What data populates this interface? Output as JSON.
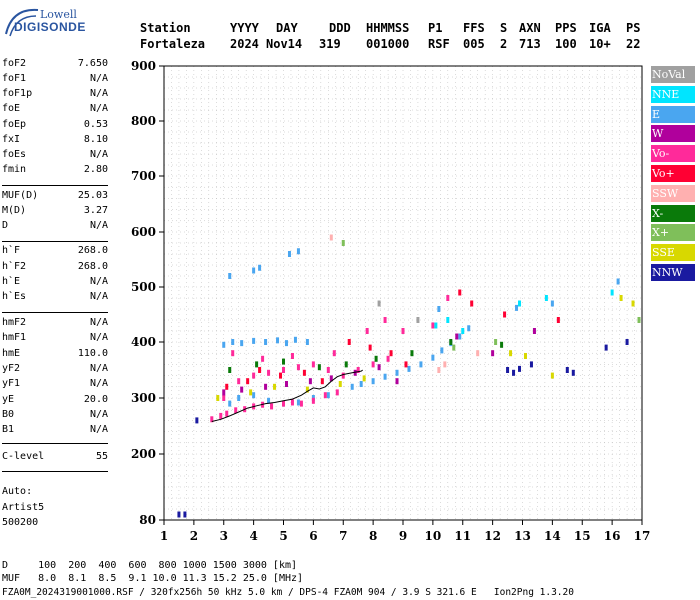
{
  "logo": {
    "top": "Lowell",
    "bottom": "DIGISONDE"
  },
  "header": {
    "line1": [
      "Station",
      "YYYY",
      "DAY",
      "DDD",
      "HHMMSS",
      "P1",
      "FFS",
      "S",
      "AXN",
      "PPS",
      "IGA",
      "PS"
    ],
    "line2": [
      "Fortaleza",
      "2024",
      "Nov14",
      "319",
      "001000",
      "RSF",
      "005",
      "2",
      "713",
      "100",
      "10+",
      "22"
    ]
  },
  "params": [
    {
      "k": "foF2",
      "v": "7.650"
    },
    {
      "k": "foF1",
      "v": "N/A"
    },
    {
      "k": "foF1p",
      "v": "N/A"
    },
    {
      "k": "foE",
      "v": "N/A"
    },
    {
      "k": "foEp",
      "v": "0.53"
    },
    {
      "k": "fxI",
      "v": "8.10"
    },
    {
      "k": "foEs",
      "v": "N/A"
    },
    {
      "k": "fmin",
      "v": "2.80"
    },
    {
      "k": "MUF(D)",
      "v": "25.03"
    },
    {
      "k": "M(D)",
      "v": "3.27"
    },
    {
      "k": "D",
      "v": "N/A"
    },
    {
      "k": "h`F",
      "v": "268.0"
    },
    {
      "k": "h`F2",
      "v": "268.0"
    },
    {
      "k": "h`E",
      "v": "N/A"
    },
    {
      "k": "h`Es",
      "v": "N/A"
    },
    {
      "k": "hmF2",
      "v": "N/A"
    },
    {
      "k": "hmF1",
      "v": "N/A"
    },
    {
      "k": "hmE",
      "v": "110.0"
    },
    {
      "k": "yF2",
      "v": "N/A"
    },
    {
      "k": "yF1",
      "v": "N/A"
    },
    {
      "k": "yE",
      "v": "20.0"
    },
    {
      "k": "B0",
      "v": "N/A"
    },
    {
      "k": "B1",
      "v": "N/A"
    },
    {
      "k": "C-level",
      "v": "55"
    }
  ],
  "auto": {
    "line1": "Auto:",
    "line2": "Artist5",
    "line3": "500200"
  },
  "legend": [
    {
      "label": "NoVal",
      "color": "#a0a0a0"
    },
    {
      "label": "NNE",
      "color": "#00e5ff"
    },
    {
      "label": "E",
      "color": "#4aa6f0"
    },
    {
      "label": "W",
      "color": "#b0009c"
    },
    {
      "label": "Vo-",
      "color": "#ff2a9a"
    },
    {
      "label": "Vo+",
      "color": "#ff0033"
    },
    {
      "label": "SSW",
      "color": "#ffb0b0"
    },
    {
      "label": "X-",
      "color": "#0a7a0a"
    },
    {
      "label": "X+",
      "color": "#7fbf5a"
    },
    {
      "label": "SSE",
      "color": "#d8d800"
    },
    {
      "label": "NNW",
      "color": "#1a1aa0"
    }
  ],
  "footer": {
    "line1": "D     100  200  400  600  800 1000 1500 3000 [km]",
    "line2": "MUF   8.0  8.1  8.5  9.1 10.0 11.3 15.2 25.0 [MHz]",
    "line3": "FZA0M_2024319001000.RSF / 320fx256h 50 kHz 5.0 km / DPS-4 FZA0M 904 / 3.9 S 321.6 E   Ion2Png 1.3.20"
  },
  "chart_data": {
    "type": "scatter",
    "xlim": [
      1,
      17
    ],
    "ylim": [
      80,
      900
    ],
    "xticks": [
      "1",
      "2",
      "3",
      "4",
      "5",
      "6",
      "7",
      "8",
      "9",
      "10",
      "11",
      "12",
      "13",
      "14",
      "15",
      "16",
      "17"
    ],
    "yticks": [
      "80",
      "200",
      "300",
      "400",
      "500",
      "600",
      "700",
      "800",
      "900"
    ],
    "grid": true,
    "series": [
      {
        "name": "E",
        "color": "#4aa6f0",
        "points": [
          [
            3.0,
            395
          ],
          [
            3.3,
            400
          ],
          [
            3.6,
            398
          ],
          [
            4.0,
            402
          ],
          [
            4.4,
            400
          ],
          [
            4.8,
            403
          ],
          [
            5.1,
            398
          ],
          [
            5.4,
            404
          ],
          [
            5.8,
            400
          ],
          [
            7.3,
            320
          ],
          [
            7.6,
            325
          ],
          [
            8.0,
            330
          ],
          [
            8.4,
            338
          ],
          [
            8.8,
            345
          ],
          [
            9.2,
            352
          ],
          [
            9.6,
            360
          ],
          [
            10.0,
            372
          ],
          [
            10.3,
            385
          ],
          [
            10.6,
            398
          ],
          [
            10.9,
            410
          ],
          [
            11.2,
            425
          ],
          [
            3.2,
            290
          ],
          [
            3.5,
            300
          ],
          [
            4.0,
            305
          ],
          [
            4.5,
            295
          ],
          [
            5.0,
            290
          ],
          [
            5.5,
            292
          ],
          [
            6.0,
            300
          ],
          [
            6.5,
            305
          ],
          [
            3.2,
            520
          ],
          [
            4.0,
            530
          ],
          [
            4.2,
            535
          ],
          [
            5.2,
            560
          ],
          [
            5.5,
            565
          ],
          [
            10.2,
            460
          ],
          [
            12.8,
            462
          ],
          [
            14.0,
            470
          ],
          [
            16.2,
            510
          ]
        ]
      },
      {
        "name": "Vo-",
        "color": "#ff2a9a",
        "points": [
          [
            2.6,
            262
          ],
          [
            2.9,
            268
          ],
          [
            3.1,
            272
          ],
          [
            3.4,
            278
          ],
          [
            3.7,
            280
          ],
          [
            4.0,
            285
          ],
          [
            4.3,
            288
          ],
          [
            4.6,
            285
          ],
          [
            5.0,
            290
          ],
          [
            5.3,
            292
          ],
          [
            5.6,
            290
          ],
          [
            6.0,
            295
          ],
          [
            6.4,
            305
          ],
          [
            6.8,
            310
          ],
          [
            3.0,
            300
          ],
          [
            3.5,
            330
          ],
          [
            4.0,
            340
          ],
          [
            4.5,
            345
          ],
          [
            5.0,
            350
          ],
          [
            5.5,
            355
          ],
          [
            6.0,
            360
          ],
          [
            6.5,
            350
          ],
          [
            7.0,
            340
          ],
          [
            7.5,
            350
          ],
          [
            8.0,
            360
          ],
          [
            8.5,
            370
          ],
          [
            3.3,
            380
          ],
          [
            4.3,
            370
          ],
          [
            5.3,
            375
          ],
          [
            6.7,
            380
          ],
          [
            7.8,
            420
          ],
          [
            8.4,
            440
          ],
          [
            9.0,
            420
          ],
          [
            10.0,
            430
          ],
          [
            10.5,
            480
          ]
        ]
      },
      {
        "name": "Vo+",
        "color": "#ff0033",
        "points": [
          [
            3.1,
            320
          ],
          [
            3.8,
            330
          ],
          [
            4.2,
            350
          ],
          [
            4.9,
            340
          ],
          [
            5.7,
            345
          ],
          [
            6.3,
            330
          ],
          [
            7.2,
            400
          ],
          [
            7.9,
            390
          ],
          [
            8.6,
            380
          ],
          [
            9.1,
            360
          ],
          [
            10.9,
            490
          ],
          [
            11.3,
            470
          ],
          [
            12.4,
            450
          ],
          [
            14.2,
            440
          ]
        ]
      },
      {
        "name": "W",
        "color": "#b0009c",
        "points": [
          [
            3.0,
            310
          ],
          [
            3.6,
            315
          ],
          [
            4.4,
            320
          ],
          [
            5.1,
            325
          ],
          [
            5.9,
            330
          ],
          [
            6.6,
            335
          ],
          [
            7.4,
            345
          ],
          [
            8.2,
            355
          ],
          [
            8.8,
            330
          ],
          [
            10.8,
            410
          ],
          [
            12.0,
            380
          ],
          [
            13.4,
            420
          ]
        ]
      },
      {
        "name": "X-",
        "color": "#0a7a0a",
        "points": [
          [
            3.2,
            350
          ],
          [
            4.1,
            360
          ],
          [
            5.0,
            365
          ],
          [
            6.2,
            355
          ],
          [
            7.1,
            360
          ],
          [
            8.1,
            370
          ],
          [
            9.3,
            380
          ],
          [
            10.6,
            400
          ],
          [
            12.3,
            395
          ]
        ]
      },
      {
        "name": "SSE",
        "color": "#d8d800",
        "points": [
          [
            2.8,
            300
          ],
          [
            3.9,
            310
          ],
          [
            4.7,
            320
          ],
          [
            5.8,
            315
          ],
          [
            6.9,
            325
          ],
          [
            7.7,
            335
          ],
          [
            12.6,
            380
          ],
          [
            13.1,
            375
          ],
          [
            14.0,
            340
          ],
          [
            16.3,
            480
          ],
          [
            16.7,
            470
          ]
        ]
      },
      {
        "name": "NNE",
        "color": "#00e5ff",
        "points": [
          [
            10.1,
            430
          ],
          [
            10.5,
            440
          ],
          [
            11.0,
            420
          ],
          [
            12.9,
            470
          ],
          [
            13.8,
            480
          ],
          [
            16.0,
            490
          ]
        ]
      },
      {
        "name": "NNW",
        "color": "#1a1aa0",
        "points": [
          [
            12.5,
            350
          ],
          [
            12.7,
            345
          ],
          [
            12.9,
            352
          ],
          [
            13.3,
            360
          ],
          [
            14.5,
            350
          ],
          [
            14.7,
            345
          ],
          [
            15.8,
            390
          ],
          [
            16.5,
            400
          ],
          [
            2.1,
            260
          ],
          [
            1.5,
            90
          ],
          [
            1.7,
            90
          ]
        ]
      },
      {
        "name": "SSW",
        "color": "#ffb0b0",
        "points": [
          [
            10.2,
            350
          ],
          [
            10.4,
            360
          ],
          [
            11.5,
            380
          ],
          [
            6.6,
            590
          ]
        ]
      },
      {
        "name": "X+",
        "color": "#7fbf5a",
        "points": [
          [
            7.0,
            580
          ],
          [
            10.7,
            390
          ],
          [
            12.1,
            400
          ],
          [
            16.9,
            440
          ]
        ]
      },
      {
        "name": "NoVal",
        "color": "#a0a0a0",
        "points": [
          [
            8.2,
            470
          ],
          [
            9.5,
            440
          ]
        ]
      }
    ],
    "trace": [
      [
        2.6,
        258
      ],
      [
        2.9,
        262
      ],
      [
        3.2,
        268
      ],
      [
        3.5,
        275
      ],
      [
        3.8,
        282
      ],
      [
        4.1,
        286
      ],
      [
        4.4,
        290
      ],
      [
        4.7,
        292
      ],
      [
        5.0,
        295
      ],
      [
        5.3,
        298
      ],
      [
        5.6,
        305
      ],
      [
        5.8,
        312
      ],
      [
        6.0,
        318
      ],
      [
        6.2,
        316
      ],
      [
        6.4,
        320
      ],
      [
        6.6,
        330
      ],
      [
        6.8,
        338
      ],
      [
        7.0,
        342
      ],
      [
        7.3,
        345
      ],
      [
        7.6,
        348
      ],
      [
        7.65,
        350
      ]
    ]
  }
}
